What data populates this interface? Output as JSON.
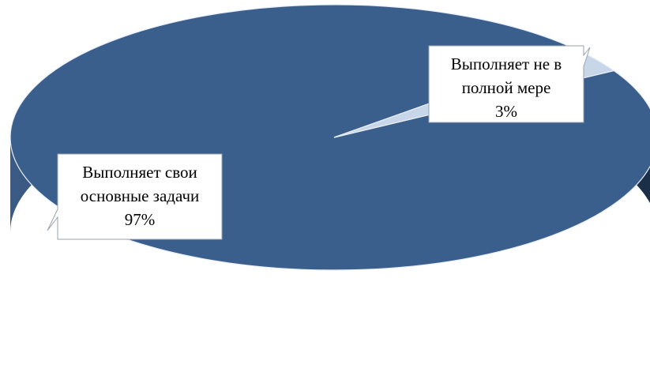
{
  "chart_data": {
    "type": "pie",
    "title": "",
    "categories": [
      "Выполняет свои основные задачи",
      "Выполняет не в полной мере"
    ],
    "values": [
      97,
      3
    ],
    "unit": "%",
    "colors": [
      "#3b5f8c",
      "#c8d6ea"
    ],
    "side_colors": [
      "#27405f",
      "#6f7b8a"
    ],
    "labels": [
      {
        "lines": [
          "Выполняет свои",
          "основные задачи",
          "97%"
        ]
      },
      {
        "lines": [
          "Выполняет не в",
          "полной мере",
          "3%"
        ]
      }
    ],
    "start_angle_deg": 41,
    "legend": "none",
    "style": "3d"
  }
}
